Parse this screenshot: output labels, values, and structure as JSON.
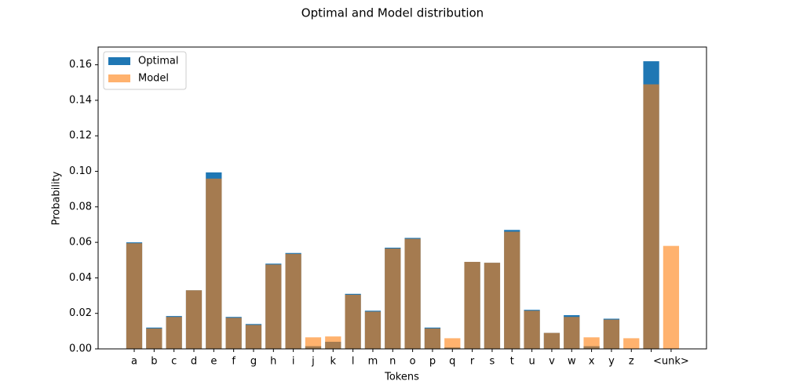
{
  "chart_data": {
    "type": "bar",
    "title": "Optimal and Model distribution",
    "x_label": "Tokens",
    "y_label": "Probability",
    "categories": [
      "a",
      "b",
      "c",
      "d",
      "e",
      "f",
      "g",
      "h",
      "i",
      "j",
      "k",
      "l",
      "m",
      "n",
      "o",
      "p",
      "q",
      "r",
      "s",
      "t",
      "u",
      "v",
      "w",
      "x",
      "y",
      "z",
      null,
      "<unk>"
    ],
    "series": [
      {
        "name": "Optimal",
        "color": "#1f77b4",
        "opacity": 1,
        "values": [
          0.06,
          0.012,
          0.0185,
          0.033,
          0.0994,
          0.018,
          0.014,
          0.048,
          0.054,
          0.0015,
          0.004,
          0.031,
          0.0215,
          0.057,
          0.0625,
          0.012,
          0.0008,
          0.049,
          0.0485,
          0.067,
          0.022,
          0.009,
          0.019,
          0.0015,
          0.017,
          0,
          0.162,
          0
        ]
      },
      {
        "name": "Model",
        "color": "#ff7f0e",
        "opacity": 0.6,
        "values": [
          0.0595,
          0.0115,
          0.018,
          0.033,
          0.0959,
          0.0175,
          0.0135,
          0.0475,
          0.0535,
          0.0065,
          0.007,
          0.0305,
          0.021,
          0.0565,
          0.062,
          0.0115,
          0.006,
          0.049,
          0.0485,
          0.066,
          0.0215,
          0.009,
          0.018,
          0.0065,
          0.0165,
          0.006,
          0.149,
          0.058
        ]
      }
    ],
    "ylim": [
      0,
      0.17
    ],
    "yticks": [
      {
        "value": 0,
        "label": "0.00"
      },
      {
        "value": 0.02,
        "label": "0.02"
      },
      {
        "value": 0.04,
        "label": "0.04"
      },
      {
        "value": 0.06,
        "label": "0.06"
      },
      {
        "value": 0.08,
        "label": "0.08"
      },
      {
        "value": 0.1,
        "label": "0.10"
      },
      {
        "value": 0.12,
        "label": "0.12"
      },
      {
        "value": 0.14,
        "label": "0.14"
      },
      {
        "value": 0.16,
        "label": "0.16"
      }
    ],
    "legend": "upper left"
  }
}
